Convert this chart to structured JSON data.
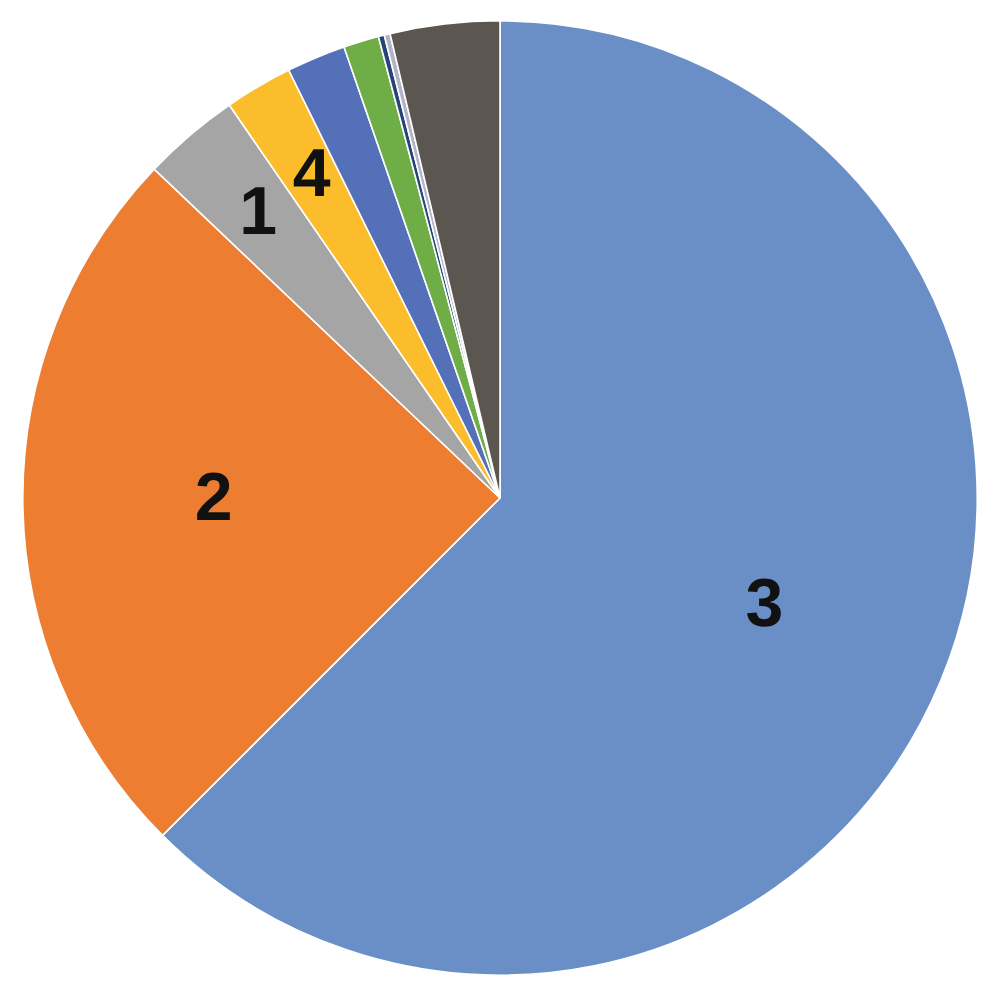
{
  "chart_data": {
    "type": "pie",
    "categories": [
      "3",
      "2",
      "1",
      "4",
      null,
      null,
      null,
      null,
      null
    ],
    "values": [
      62.5,
      24.6,
      3.3,
      2.3,
      2.0,
      1.2,
      0.2,
      0.2,
      3.7
    ],
    "colors": [
      "#6a8fc7",
      "#ed7d31",
      "#a5a5a5",
      "#fbbd2b",
      "#5470b8",
      "#6fad47",
      "#264478",
      "#b4b4c8",
      "#5b5650"
    ]
  }
}
